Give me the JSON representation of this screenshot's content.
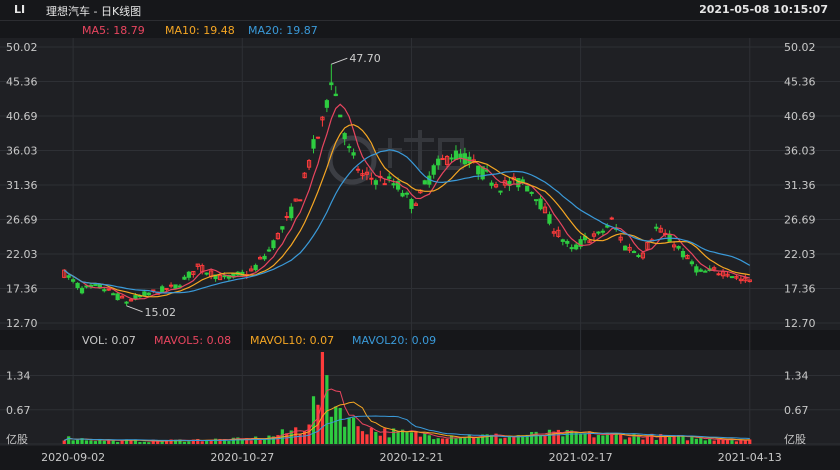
{
  "header": {
    "symbol": "LI",
    "title": "理想汽车 - 日K线图",
    "timestamp": "2021-05-08 10:15:07"
  },
  "colors": {
    "up": "#ff3b3b",
    "down": "#2ecc40",
    "ma5": "#e8455f",
    "ma10": "#f5a623",
    "ma20": "#3a9ad9",
    "background": "#1f2024",
    "grid": "#2e3035",
    "text": "#c8c8c8"
  },
  "chart_data": [
    {
      "type": "candlestick",
      "panel": "price",
      "legend": [
        {
          "label": "MA5: 18.79",
          "color_key": "ma5"
        },
        {
          "label": "MA10: 19.48",
          "color_key": "ma10"
        },
        {
          "label": "MA20: 19.87",
          "color_key": "ma20"
        }
      ],
      "y_ticks": [
        "50.02",
        "45.36",
        "40.69",
        "36.03",
        "31.36",
        "26.69",
        "22.03",
        "17.36",
        "12.70"
      ],
      "ylim": [
        12.7,
        50.02
      ],
      "x_tick_labels": [
        "2020-09-02",
        "2020-10-27",
        "2020-12-21",
        "2021-02-17",
        "2021-04-13"
      ],
      "x_tick_index": [
        2,
        40,
        78,
        116,
        154
      ],
      "annotations": [
        {
          "label": "47.70",
          "index": 60,
          "value": 47.7,
          "kind": "high"
        },
        {
          "label": "15.02",
          "index": 14,
          "value": 15.02,
          "kind": "low"
        }
      ],
      "ohlc_keypoints": [
        [
          0,
          19.4
        ],
        [
          4,
          17.2
        ],
        [
          8,
          17.6
        ],
        [
          14,
          15.6
        ],
        [
          18,
          16.5
        ],
        [
          25,
          17.6
        ],
        [
          30,
          20.2
        ],
        [
          36,
          18.7
        ],
        [
          42,
          19.6
        ],
        [
          46,
          22.5
        ],
        [
          50,
          26.5
        ],
        [
          53,
          30.0
        ],
        [
          56,
          36.5
        ],
        [
          58,
          39.5
        ],
        [
          60,
          46.0
        ],
        [
          62,
          41.0
        ],
        [
          64,
          36.0
        ],
        [
          67,
          32.5
        ],
        [
          72,
          32.0
        ],
        [
          75,
          31.2
        ],
        [
          78,
          28.8
        ],
        [
          80,
          30.0
        ],
        [
          83,
          33.5
        ],
        [
          87,
          35.5
        ],
        [
          90,
          35.0
        ],
        [
          94,
          33.0
        ],
        [
          98,
          31.3
        ],
        [
          103,
          31.8
        ],
        [
          106,
          30.0
        ],
        [
          110,
          25.5
        ],
        [
          114,
          22.5
        ],
        [
          117,
          24.0
        ],
        [
          120,
          24.5
        ],
        [
          123,
          26.5
        ],
        [
          126,
          23.0
        ],
        [
          130,
          22.0
        ],
        [
          133,
          25.5
        ],
        [
          137,
          23.5
        ],
        [
          140,
          21.3
        ],
        [
          143,
          19.5
        ],
        [
          146,
          19.7
        ],
        [
          149,
          19.5
        ],
        [
          152,
          18.5
        ],
        [
          154,
          18.4
        ]
      ]
    },
    {
      "type": "bar",
      "panel": "volume",
      "legend": [
        {
          "label": "VOL: 0.07",
          "color_key": "text"
        },
        {
          "label": "MAVOL5: 0.08",
          "color_key": "ma5"
        },
        {
          "label": "MAVOL10: 0.07",
          "color_key": "ma10"
        },
        {
          "label": "MAVOL20: 0.09",
          "color_key": "ma20"
        }
      ],
      "unit": "亿股",
      "y_ticks": [
        "1.34",
        "0.67"
      ],
      "ylim": [
        0,
        1.8
      ],
      "vol_keypoints": [
        [
          0,
          0.12
        ],
        [
          10,
          0.07
        ],
        [
          20,
          0.06
        ],
        [
          30,
          0.08
        ],
        [
          40,
          0.09
        ],
        [
          45,
          0.12
        ],
        [
          50,
          0.22
        ],
        [
          54,
          0.35
        ],
        [
          57,
          0.9
        ],
        [
          58,
          1.8
        ],
        [
          60,
          0.8
        ],
        [
          62,
          0.7
        ],
        [
          65,
          0.4
        ],
        [
          70,
          0.25
        ],
        [
          80,
          0.18
        ],
        [
          90,
          0.16
        ],
        [
          100,
          0.15
        ],
        [
          110,
          0.2
        ],
        [
          120,
          0.18
        ],
        [
          130,
          0.15
        ],
        [
          140,
          0.12
        ],
        [
          150,
          0.1
        ],
        [
          154,
          0.07
        ]
      ]
    }
  ]
}
